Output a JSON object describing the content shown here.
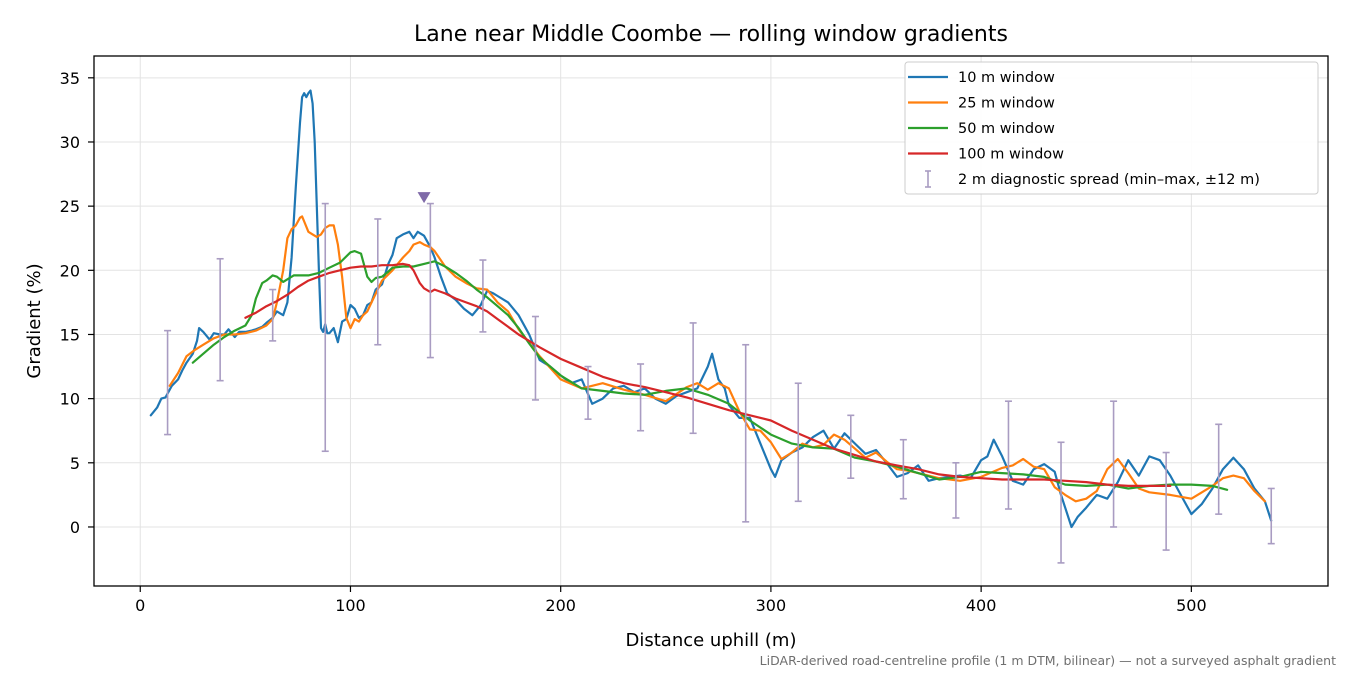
{
  "chart_data": {
    "type": "line",
    "title": "Lane near Middle Coombe — rolling window gradients",
    "xlabel": "Distance uphill (m)",
    "ylabel": "Gradient (%)",
    "xlim": [
      -22,
      565
    ],
    "ylim": [
      -4.6,
      36.7
    ],
    "x_ticks": [
      0,
      100,
      200,
      300,
      400,
      500
    ],
    "y_ticks": [
      0,
      5,
      10,
      15,
      20,
      25,
      30,
      35
    ],
    "grid": true,
    "legend_position": "top-right",
    "footnote": "LiDAR-derived road-centreline profile (1 m DTM, bilinear) — not a surveyed asphalt gradient",
    "series": [
      {
        "name": "10 m window",
        "color": "#1f77b4",
        "x": [
          5,
          8,
          10,
          12,
          15,
          18,
          20,
          22,
          25,
          27,
          28,
          30,
          33,
          35,
          38,
          40,
          42,
          45,
          47,
          50,
          53,
          55,
          58,
          60,
          63,
          65,
          68,
          70,
          72,
          74,
          76,
          77,
          78,
          79,
          80,
          81,
          82,
          83,
          84,
          85,
          86,
          87,
          88,
          89,
          90,
          92,
          94,
          96,
          98,
          100,
          102,
          104,
          106,
          108,
          110,
          112,
          115,
          118,
          120,
          122,
          125,
          128,
          130,
          132,
          135,
          138,
          140,
          143,
          146,
          150,
          154,
          158,
          162,
          165,
          168,
          170,
          175,
          180,
          185,
          190,
          195,
          200,
          205,
          210,
          215,
          220,
          225,
          230,
          235,
          240,
          245,
          250,
          255,
          260,
          265,
          270,
          272,
          275,
          278,
          280,
          285,
          290,
          295,
          300,
          302,
          305,
          310,
          315,
          320,
          325,
          330,
          335,
          340,
          345,
          350,
          355,
          360,
          365,
          370,
          375,
          380,
          385,
          390,
          395,
          400,
          403,
          406,
          410,
          415,
          420,
          425,
          430,
          435,
          438,
          440,
          443,
          446,
          450,
          455,
          460,
          465,
          470,
          475,
          480,
          485,
          490,
          495,
          500,
          505,
          510,
          515,
          520,
          525,
          530,
          535,
          538
        ],
        "y": [
          8.7,
          9.3,
          10,
          10.1,
          11,
          11.5,
          12.2,
          12.8,
          13.5,
          14.5,
          15.5,
          15.2,
          14.6,
          15.1,
          15,
          15,
          15.4,
          14.8,
          15.2,
          15.2,
          15.3,
          15.4,
          15.6,
          15.9,
          16.3,
          16.8,
          16.5,
          17.5,
          21,
          26.5,
          31.5,
          33.5,
          33.8,
          33.5,
          33.8,
          34,
          33,
          30,
          25,
          20,
          15.5,
          15.2,
          15.8,
          15.1,
          15.1,
          15.5,
          14.4,
          16,
          16.2,
          17.3,
          17,
          16.3,
          16.5,
          17.3,
          17.5,
          18.5,
          18.9,
          20.5,
          21.2,
          22.5,
          22.8,
          23,
          22.5,
          23,
          22.7,
          21.8,
          21,
          19.5,
          18.2,
          17.7,
          17,
          16.5,
          17.3,
          18.4,
          18.2,
          18,
          17.5,
          16.5,
          15,
          13,
          12.5,
          11.8,
          11.2,
          11.5,
          9.6,
          10,
          10.8,
          11,
          10.5,
          10.8,
          10,
          9.6,
          10.2,
          10.5,
          10.8,
          12.5,
          13.5,
          11.5,
          10.8,
          9.5,
          8.5,
          8.5,
          6.5,
          4.5,
          3.9,
          5.2,
          5.8,
          6.2,
          7,
          7.5,
          6.1,
          7.3,
          6.5,
          5.7,
          6,
          5,
          3.9,
          4.2,
          4.8,
          3.6,
          3.8,
          3.9,
          4,
          3.8,
          5.2,
          5.5,
          6.8,
          5.5,
          3.6,
          3.3,
          4.5,
          4.9,
          4.3,
          2.5,
          1.5,
          0,
          0.8,
          1.5,
          2.5,
          2.2,
          3.5,
          5.2,
          4,
          5.5,
          5.2,
          4,
          2.5,
          1,
          1.8,
          3,
          4.5,
          5.4,
          4.5,
          3,
          2,
          0.5
        ]
      },
      {
        "name": "25 m window",
        "color": "#ff7f0e",
        "x": [
          14,
          18,
          22,
          26,
          30,
          35,
          40,
          45,
          50,
          55,
          60,
          63,
          65,
          68,
          70,
          72,
          74,
          76,
          77,
          78,
          80,
          82,
          84,
          86,
          88,
          90,
          92,
          94,
          96,
          98,
          100,
          102,
          104,
          106,
          108,
          110,
          115,
          120,
          125,
          128,
          130,
          133,
          135,
          138,
          140,
          145,
          150,
          155,
          160,
          165,
          170,
          175,
          180,
          190,
          200,
          210,
          220,
          230,
          240,
          250,
          260,
          265,
          270,
          275,
          280,
          285,
          290,
          295,
          300,
          305,
          310,
          315,
          320,
          325,
          330,
          335,
          340,
          345,
          350,
          355,
          360,
          365,
          370,
          380,
          390,
          400,
          410,
          415,
          420,
          425,
          430,
          435,
          440,
          445,
          450,
          455,
          460,
          465,
          470,
          475,
          480,
          490,
          500,
          510,
          515,
          520,
          525,
          530,
          535
        ],
        "y": [
          11,
          12,
          13.3,
          13.8,
          14.2,
          14.7,
          15,
          15,
          15.1,
          15.3,
          15.7,
          16.2,
          17.5,
          20,
          22.5,
          23.2,
          23.5,
          24.1,
          24.2,
          23.8,
          23,
          22.8,
          22.6,
          22.8,
          23.3,
          23.5,
          23.5,
          22,
          19.5,
          16.3,
          15.5,
          16.2,
          16,
          16.5,
          16.8,
          17.5,
          19.2,
          20,
          21,
          21.5,
          22,
          22.2,
          22,
          21.8,
          21.5,
          20.3,
          19.5,
          19,
          18.6,
          18.5,
          17.5,
          16.8,
          15.4,
          13.3,
          11.5,
          10.8,
          11.2,
          10.7,
          10.3,
          9.8,
          10.9,
          11.2,
          10.7,
          11.2,
          10.8,
          9,
          7.6,
          7.5,
          6.6,
          5.3,
          5.8,
          6.5,
          6.2,
          6.4,
          7.2,
          6.8,
          6.1,
          5.4,
          5.8,
          5.1,
          4.5,
          4.4,
          4.2,
          3.8,
          3.6,
          3.9,
          4.6,
          4.8,
          5.3,
          4.7,
          4.5,
          3.1,
          2.5,
          2,
          2.2,
          2.8,
          4.5,
          5.3,
          4.2,
          3,
          2.7,
          2.5,
          2.2,
          3.2,
          3.8,
          4,
          3.8,
          2.8,
          2
        ]
      },
      {
        "name": "50 m window",
        "color": "#2ca02c",
        "x": [
          25,
          30,
          35,
          40,
          45,
          50,
          53,
          55,
          58,
          60,
          63,
          65,
          68,
          70,
          73,
          76,
          80,
          85,
          90,
          95,
          100,
          102,
          105,
          108,
          110,
          112,
          115,
          118,
          120,
          125,
          130,
          135,
          140,
          145,
          150,
          155,
          160,
          165,
          170,
          175,
          180,
          185,
          190,
          195,
          200,
          210,
          220,
          230,
          240,
          250,
          260,
          270,
          280,
          290,
          300,
          310,
          320,
          330,
          340,
          350,
          360,
          370,
          380,
          390,
          400,
          410,
          420,
          430,
          440,
          450,
          460,
          470,
          480,
          490,
          500,
          510,
          517
        ],
        "y": [
          12.8,
          13.5,
          14.2,
          14.8,
          15.3,
          15.7,
          16.5,
          17.8,
          19,
          19.2,
          19.6,
          19.5,
          19.1,
          19.3,
          19.6,
          19.6,
          19.6,
          19.8,
          20.2,
          20.6,
          21.4,
          21.5,
          21.3,
          19.5,
          19.1,
          19.4,
          19.5,
          19.9,
          20.2,
          20.3,
          20.3,
          20.5,
          20.7,
          20.3,
          19.8,
          19.2,
          18.5,
          17.9,
          17.2,
          16.5,
          15.5,
          14.3,
          13.2,
          12.5,
          11.8,
          10.8,
          10.6,
          10.4,
          10.3,
          10.6,
          10.8,
          10.3,
          9.6,
          8.3,
          7.2,
          6.5,
          6.2,
          6.1,
          5.4,
          5.1,
          4.7,
          4.2,
          3.7,
          3.9,
          4.3,
          4.2,
          4.1,
          3.9,
          3.3,
          3.2,
          3.3,
          3.0,
          3.2,
          3.3,
          3.3,
          3.2,
          2.9
        ]
      },
      {
        "name": "100 m window",
        "color": "#d62728",
        "x": [
          50,
          55,
          60,
          65,
          70,
          75,
          80,
          85,
          90,
          95,
          100,
          105,
          110,
          115,
          120,
          125,
          128,
          130,
          133,
          135,
          138,
          140,
          145,
          150,
          155,
          160,
          165,
          170,
          175,
          180,
          190,
          200,
          210,
          220,
          230,
          240,
          250,
          260,
          270,
          280,
          290,
          300,
          310,
          320,
          330,
          340,
          350,
          360,
          370,
          380,
          390,
          400,
          410,
          420,
          430,
          440,
          450,
          460,
          470,
          480,
          490
        ],
        "y": [
          16.3,
          16.7,
          17.2,
          17.6,
          18.1,
          18.7,
          19.2,
          19.5,
          19.8,
          20,
          20.2,
          20.3,
          20.3,
          20.4,
          20.4,
          20.5,
          20.4,
          20,
          19,
          18.6,
          18.3,
          18.5,
          18.2,
          17.8,
          17.5,
          17.2,
          16.8,
          16.2,
          15.6,
          15,
          14,
          13.1,
          12.4,
          11.7,
          11.2,
          10.9,
          10.5,
          10.1,
          9.6,
          9.1,
          8.7,
          8.3,
          7.5,
          6.8,
          6.1,
          5.6,
          5.1,
          4.8,
          4.5,
          4.1,
          3.9,
          3.8,
          3.7,
          3.7,
          3.7,
          3.6,
          3.5,
          3.3,
          3.2,
          3.2,
          3.2
        ]
      },
      {
        "name": "2 m diagnostic spread (min–max, ±12 m)",
        "color": "#a99cc2",
        "type": "errorbar",
        "x": [
          13,
          38,
          63,
          88,
          113,
          138,
          163,
          188,
          213,
          238,
          263,
          288,
          313,
          338,
          363,
          388,
          413,
          438,
          463,
          488,
          513,
          538
        ],
        "low": [
          7.2,
          11.4,
          14.5,
          5.9,
          14.2,
          13.2,
          15.2,
          9.9,
          8.4,
          7.5,
          7.3,
          0.4,
          2,
          3.8,
          2.2,
          0.7,
          1.4,
          -2.8,
          0,
          -1.8,
          1,
          -1.3
        ],
        "high": [
          15.3,
          20.9,
          18.5,
          25.2,
          24,
          25.2,
          20.8,
          16.4,
          12.5,
          12.7,
          15.9,
          14.2,
          11.2,
          8.7,
          6.8,
          5,
          9.8,
          6.6,
          9.8,
          5.8,
          8,
          3
        ]
      }
    ],
    "marker": {
      "shape": "triangle-down",
      "x": 135,
      "y": 25.7,
      "color": "#7f6aa8"
    }
  }
}
